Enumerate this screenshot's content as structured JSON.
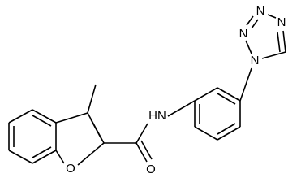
{
  "atoms": [
    {
      "label": "N"
    },
    {
      "label": "N"
    },
    {
      "label": "N"
    },
    {
      "label": "N"
    },
    {
      "label": "HN"
    },
    {
      "label": "O"
    },
    {
      "label": "O"
    }
  ]
}
